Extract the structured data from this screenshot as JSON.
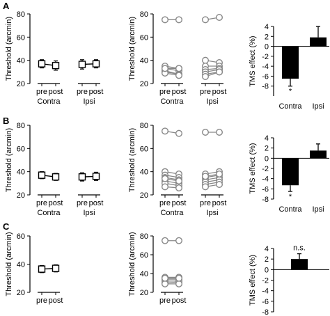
{
  "chart_data": [
    {
      "panel": "A",
      "type": "scatter",
      "ylabel": "Threshold (arcmin)",
      "ylim": [
        20,
        80
      ],
      "yticks": [
        20,
        40,
        60,
        80
      ],
      "groups": [
        {
          "name": "Contra",
          "conditions": [
            "pre",
            "post"
          ],
          "mean": [
            37,
            35.5
          ],
          "err": [
            3.5,
            4
          ]
        },
        {
          "name": "Ipsi",
          "conditions": [
            "pre",
            "post"
          ],
          "mean": [
            36.5,
            37
          ],
          "err": [
            4,
            3.5
          ]
        }
      ]
    },
    {
      "panel": "A2",
      "type": "line",
      "ylabel": "Threshold (arcmin)",
      "ylim": [
        20,
        80
      ],
      "yticks": [
        20,
        40,
        60,
        80
      ],
      "groups": [
        {
          "name": "Contra",
          "conditions": [
            "pre",
            "post"
          ],
          "subjects": [
            [
              75,
              75
            ],
            [
              35,
              33
            ],
            [
              33,
              31
            ],
            [
              31,
              28
            ],
            [
              30,
              28
            ],
            [
              29,
              27
            ],
            [
              33,
              33
            ]
          ]
        },
        {
          "name": "Ipsi",
          "conditions": [
            "pre",
            "post"
          ],
          "subjects": [
            [
              75,
              77
            ],
            [
              40,
              38
            ],
            [
              35,
              35
            ],
            [
              32,
              33
            ],
            [
              30,
              32
            ],
            [
              28,
              30
            ],
            [
              26,
              30
            ]
          ]
        }
      ]
    },
    {
      "panel": "A3",
      "type": "bar",
      "ylabel": "TMS effect (%)",
      "ylim": [
        -10,
        4
      ],
      "yticks": [
        -8,
        -6,
        -4,
        -2,
        0,
        2,
        4
      ],
      "categories": [
        "Contra",
        "Ipsi"
      ],
      "values": [
        -6.5,
        1.8
      ],
      "err": [
        1.5,
        2.2
      ],
      "annotations": [
        "*",
        ""
      ]
    },
    {
      "panel": "B",
      "type": "scatter",
      "ylabel": "Threshold (arcmin)",
      "ylim": [
        20,
        80
      ],
      "yticks": [
        20,
        40,
        60,
        80
      ],
      "groups": [
        {
          "name": "Contra",
          "conditions": [
            "pre",
            "post"
          ],
          "mean": [
            37,
            35.5
          ],
          "err": [
            3,
            3
          ]
        },
        {
          "name": "Ipsi",
          "conditions": [
            "pre",
            "post"
          ],
          "mean": [
            35.5,
            36
          ],
          "err": [
            3.5,
            3.5
          ]
        }
      ]
    },
    {
      "panel": "B2",
      "type": "line",
      "ylabel": "Threshold (arcmin)",
      "ylim": [
        20,
        80
      ],
      "yticks": [
        20,
        40,
        60,
        80
      ],
      "groups": [
        {
          "name": "Contra",
          "conditions": [
            "pre",
            "post"
          ],
          "subjects": [
            [
              75,
              73
            ],
            [
              40,
              38
            ],
            [
              37,
              35
            ],
            [
              35,
              33
            ],
            [
              32,
              30
            ],
            [
              30,
              28
            ],
            [
              27,
              26
            ],
            [
              34,
              32
            ]
          ]
        },
        {
          "name": "Ipsi",
          "conditions": [
            "pre",
            "post"
          ],
          "subjects": [
            [
              74,
              74
            ],
            [
              38,
              40
            ],
            [
              35,
              37
            ],
            [
              33,
              35
            ],
            [
              31,
              33
            ],
            [
              29,
              31
            ],
            [
              27,
              29
            ],
            [
              36,
              38
            ]
          ]
        }
      ]
    },
    {
      "panel": "B3",
      "type": "bar",
      "ylabel": "TMS effect (%)",
      "ylim": [
        -8,
        4
      ],
      "yticks": [
        -8,
        -6,
        -4,
        -2,
        0,
        2,
        4
      ],
      "categories": [
        "Contra",
        "Ipsi"
      ],
      "values": [
        -5.3,
        1.5
      ],
      "err": [
        1.2,
        1.3
      ],
      "annotations": [
        "*",
        ""
      ]
    },
    {
      "panel": "C",
      "type": "scatter",
      "ylabel": "Threshold (arcmin)",
      "ylim": [
        20,
        60
      ],
      "yticks": [
        20,
        40,
        60
      ],
      "groups": [
        {
          "name": "",
          "conditions": [
            "pre",
            "post"
          ],
          "mean": [
            36.5,
            37
          ],
          "err": [
            2.5,
            2.5
          ]
        }
      ]
    },
    {
      "panel": "C2",
      "type": "line",
      "ylabel": "Threshold (arcmin)",
      "ylim": [
        20,
        80
      ],
      "yticks": [
        20,
        40,
        60,
        80
      ],
      "groups": [
        {
          "name": "",
          "conditions": [
            "pre",
            "post"
          ],
          "subjects": [
            [
              75,
              75
            ],
            [
              36,
              36
            ],
            [
              34,
              34
            ],
            [
              32,
              32
            ],
            [
              30,
              31
            ],
            [
              29,
              29
            ],
            [
              35,
              35
            ]
          ]
        }
      ]
    },
    {
      "panel": "C3",
      "type": "bar",
      "ylabel": "TMS effect (%)",
      "ylim": [
        -8,
        4
      ],
      "yticks": [
        -8,
        -6,
        -4,
        -2,
        0,
        2,
        4
      ],
      "categories": [
        ""
      ],
      "values": [
        2
      ],
      "err": [
        1.0
      ],
      "annotations": [
        "n.s."
      ]
    }
  ]
}
